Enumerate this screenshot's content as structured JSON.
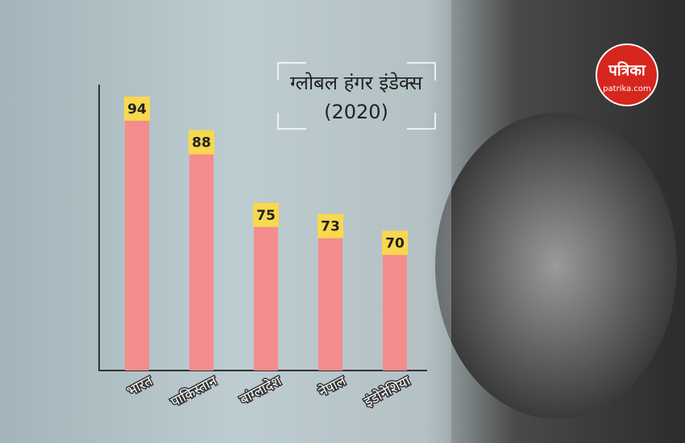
{
  "chart_data": {
    "type": "bar",
    "title": "ग्लोबल हंगर इंडेक्स",
    "subtitle": "(2020)",
    "categories": [
      "भारत",
      "पाकिस्तान",
      "बांग्लादेश",
      "नेपाल",
      "इंडोनेशिया"
    ],
    "values": [
      94,
      88,
      75,
      73,
      70
    ],
    "color": "#f58c8c",
    "label_color": "#f8d84e",
    "ylim": [
      45,
      95
    ]
  },
  "logo": {
    "name": "पत्रिका",
    "url": "patrika.com"
  }
}
